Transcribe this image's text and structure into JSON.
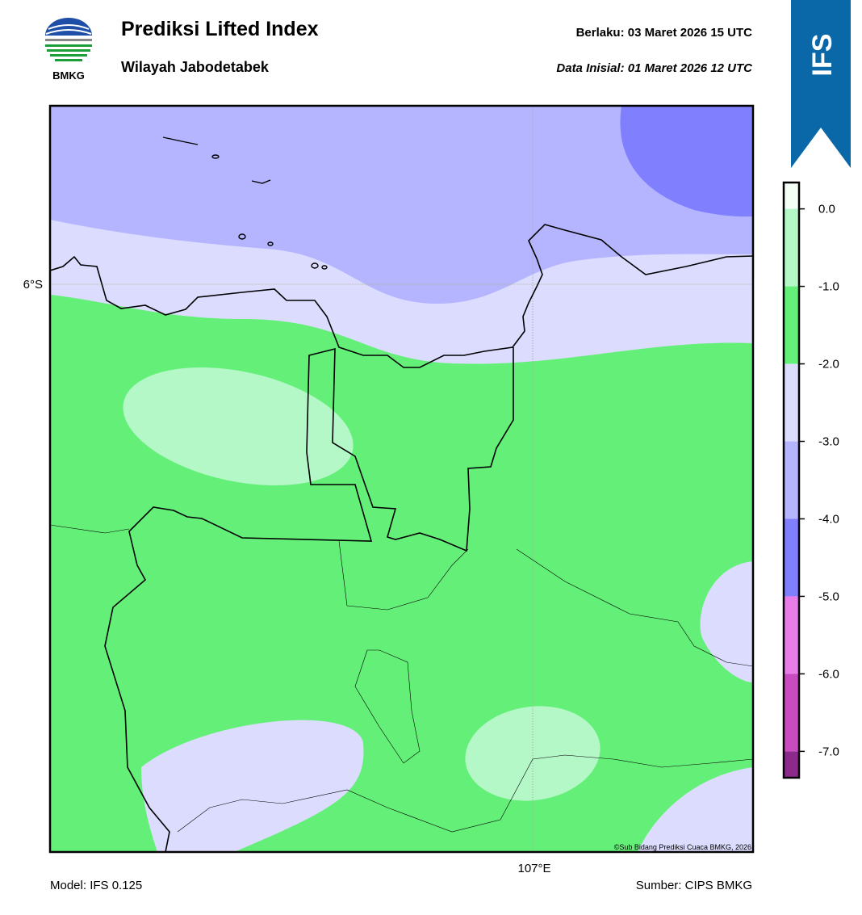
{
  "header": {
    "title": "Prediksi Lifted Index",
    "subtitle": "Wilayah Jabodetabek",
    "valid": "Berlaku:  03 Maret 2026 15 UTC",
    "initial": "Data Inisial:  01 Maret 2026 12 UTC",
    "logo_text": "BMKG",
    "badge": "IFS"
  },
  "map": {
    "lat_label": "6°S",
    "lon_label": "107°E",
    "credit": "©Sub Bidang Prediksi Cuaca BMKG, 2026"
  },
  "colorbar": {
    "lim": [
      -7.34,
      0.34
    ],
    "ticks": [
      {
        "value": 0,
        "label": "0.0"
      },
      {
        "value": -1,
        "label": "-1.0"
      },
      {
        "value": -2,
        "label": "-2.0"
      },
      {
        "value": -3,
        "label": "-3.0"
      },
      {
        "value": -4,
        "label": "-4.0"
      },
      {
        "value": -5,
        "label": "-5.0"
      },
      {
        "value": -6,
        "label": "-6.0"
      },
      {
        "value": -7,
        "label": "-7.0"
      }
    ],
    "colors": [
      "#f4fff6",
      "#b4f8c8",
      "#64f078",
      "#dcdcff",
      "#b4b4ff",
      "#8080ff",
      "#e87de8",
      "#c84cc0",
      "#8c2a8c"
    ]
  },
  "footer": {
    "model": "Model: IFS 0.125",
    "source": "Sumber: CIPS BMKG"
  }
}
